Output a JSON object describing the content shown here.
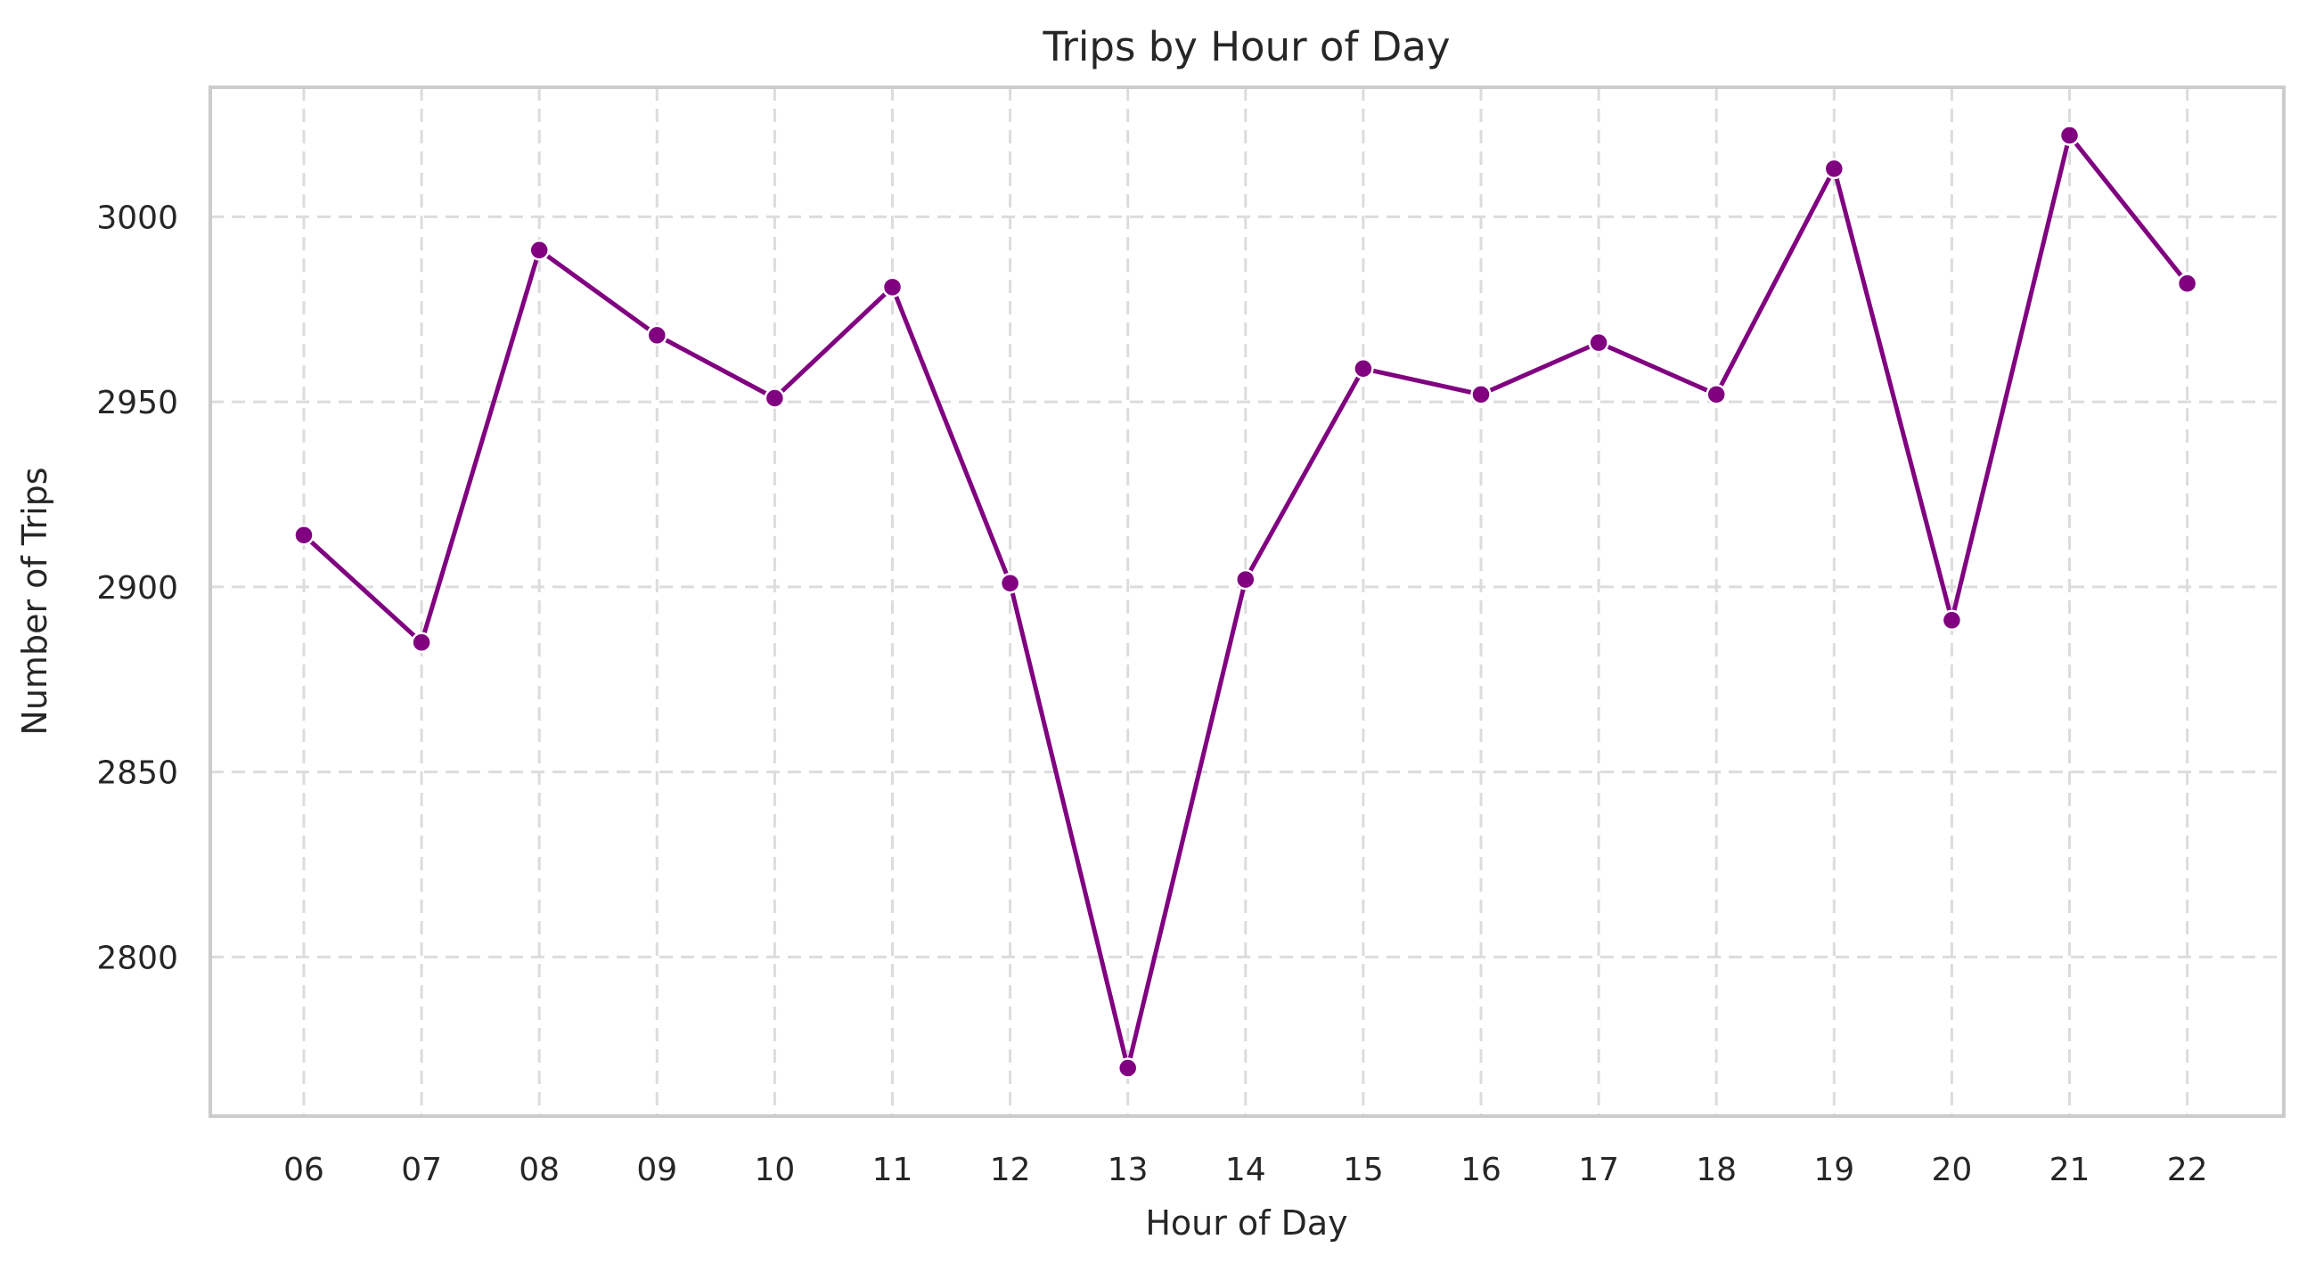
{
  "chart_data": {
    "type": "line",
    "title": "Trips by Hour of Day",
    "xlabel": "Hour of Day",
    "ylabel": "Number of Trips",
    "categories": [
      "06",
      "07",
      "08",
      "09",
      "10",
      "11",
      "12",
      "13",
      "14",
      "15",
      "16",
      "17",
      "18",
      "19",
      "20",
      "21",
      "22"
    ],
    "series": [
      {
        "values": [
          2914,
          2885,
          2991,
          2968,
          2951,
          2981,
          2901,
          2770,
          2902,
          2959,
          2952,
          2966,
          2952,
          3013,
          2891,
          3022,
          2982
        ],
        "color": "#800080",
        "marker": "circle"
      }
    ],
    "yticks": [
      2800,
      2850,
      2900,
      2950,
      3000
    ],
    "ylim": [
      2757,
      3035
    ],
    "grid": true,
    "grid_style": "dashed",
    "legend": false
  }
}
